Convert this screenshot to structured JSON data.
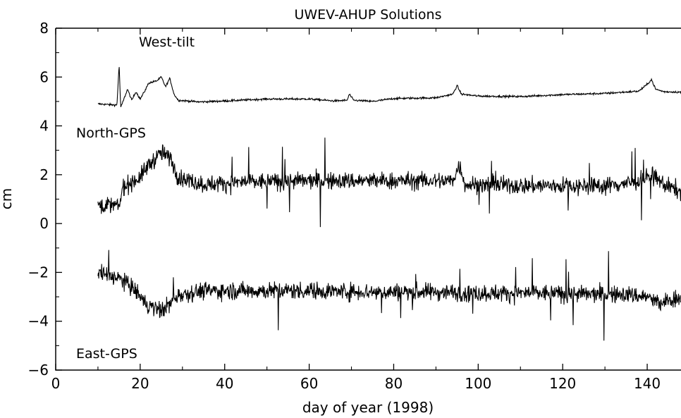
{
  "chart_data": {
    "type": "line",
    "title": "UWEV-AHUP Solutions",
    "xlabel": "day of year (1998)",
    "ylabel": "cm",
    "xlim": [
      0,
      148
    ],
    "ylim": [
      -6,
      8
    ],
    "x_ticks": [
      0,
      20,
      40,
      60,
      80,
      100,
      120,
      140
    ],
    "y_ticks": [
      -6,
      -4,
      -2,
      0,
      2,
      4,
      6,
      8
    ],
    "grid": false,
    "series": [
      {
        "name": "West-tilt",
        "color": "#000000",
        "x_range": [
          10,
          148
        ],
        "points": [
          [
            10,
            4.9
          ],
          [
            14.5,
            4.85
          ],
          [
            15,
            6.5
          ],
          [
            15.4,
            4.75
          ],
          [
            17,
            5.5
          ],
          [
            18,
            5.05
          ],
          [
            19,
            5.4
          ],
          [
            20,
            5.1
          ],
          [
            21,
            5.4
          ],
          [
            22,
            5.75
          ],
          [
            24,
            5.85
          ],
          [
            25,
            6.0
          ],
          [
            26,
            5.6
          ],
          [
            27,
            5.95
          ],
          [
            28,
            5.3
          ],
          [
            29,
            5.05
          ],
          [
            34,
            4.98
          ],
          [
            40,
            5.02
          ],
          [
            50,
            5.1
          ],
          [
            60,
            5.1
          ],
          [
            66,
            5.02
          ],
          [
            69,
            5.05
          ],
          [
            69.5,
            5.3
          ],
          [
            70.5,
            5.05
          ],
          [
            75,
            5.0
          ],
          [
            80,
            5.12
          ],
          [
            90,
            5.15
          ],
          [
            94,
            5.3
          ],
          [
            95,
            5.65
          ],
          [
            96,
            5.3
          ],
          [
            100,
            5.22
          ],
          [
            110,
            5.2
          ],
          [
            120,
            5.28
          ],
          [
            130,
            5.33
          ],
          [
            138,
            5.42
          ],
          [
            140,
            5.7
          ],
          [
            141,
            5.9
          ],
          [
            142,
            5.5
          ],
          [
            144,
            5.4
          ],
          [
            148,
            5.38
          ]
        ],
        "noise": 0.04,
        "label": "West-tilt"
      },
      {
        "name": "North-GPS",
        "color": "#000000",
        "x_range": [
          10,
          148
        ],
        "points": [
          [
            10,
            0.8
          ],
          [
            15,
            0.7
          ],
          [
            16,
            1.5
          ],
          [
            20,
            1.9
          ],
          [
            22,
            2.4
          ],
          [
            25,
            2.9
          ],
          [
            27,
            2.7
          ],
          [
            29,
            1.9
          ],
          [
            35,
            1.6
          ],
          [
            45,
            1.7
          ],
          [
            60,
            1.75
          ],
          [
            80,
            1.75
          ],
          [
            94,
            1.75
          ],
          [
            95.5,
            2.4
          ],
          [
            97,
            1.6
          ],
          [
            110,
            1.55
          ],
          [
            130,
            1.55
          ],
          [
            138,
            1.7
          ],
          [
            141,
            2.0
          ],
          [
            144,
            1.6
          ],
          [
            148,
            1.3
          ]
        ],
        "noise": 0.35,
        "label": "North-GPS"
      },
      {
        "name": "East-GPS",
        "color": "#000000",
        "x_range": [
          10,
          148
        ],
        "points": [
          [
            10,
            -2.0
          ],
          [
            15,
            -2.25
          ],
          [
            18,
            -2.6
          ],
          [
            20,
            -3.0
          ],
          [
            22,
            -3.4
          ],
          [
            25,
            -3.55
          ],
          [
            27,
            -3.3
          ],
          [
            29,
            -2.9
          ],
          [
            35,
            -2.75
          ],
          [
            50,
            -2.75
          ],
          [
            60,
            -2.75
          ],
          [
            75,
            -2.8
          ],
          [
            90,
            -2.8
          ],
          [
            100,
            -2.85
          ],
          [
            115,
            -2.85
          ],
          [
            125,
            -2.9
          ],
          [
            135,
            -2.9
          ],
          [
            140,
            -3.0
          ],
          [
            143,
            -3.3
          ],
          [
            146,
            -3.1
          ],
          [
            148,
            -3.0
          ]
        ],
        "noise": 0.35,
        "label": "East-GPS"
      }
    ]
  }
}
